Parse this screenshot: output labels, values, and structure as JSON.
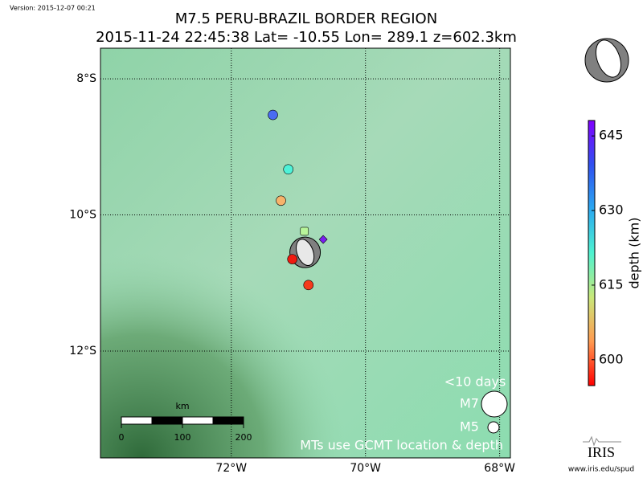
{
  "map": {
    "version": "Version: 2015-12-07 00:21",
    "title": "M7.5 PERU-BRAZIL BORDER REGION",
    "subtitle": "2015-11-24 22:45:38 Lat= -10.55 Lon= 289.1 z=602.3km",
    "xlim": [
      -73.95,
      -67.84
    ],
    "ylim": [
      -13.57,
      -7.55
    ],
    "xticks": [
      {
        "value": -72,
        "label": "72°W"
      },
      {
        "value": -70,
        "label": "70°W"
      },
      {
        "value": -68,
        "label": "68°W"
      }
    ],
    "yticks": [
      {
        "value": -8,
        "label": "8°S"
      },
      {
        "value": -10,
        "label": "10°S"
      },
      {
        "value": -12,
        "label": "12°S"
      }
    ],
    "grid": true,
    "mainshock": {
      "lon": -70.9,
      "lat": -10.55
    },
    "events": [
      {
        "lon": -71.38,
        "lat": -8.53,
        "depth": 640,
        "color": "#4a6cf2",
        "shape": "circle"
      },
      {
        "lon": -71.15,
        "lat": -9.33,
        "depth": 625,
        "color": "#4ef2d8",
        "shape": "circle"
      },
      {
        "lon": -71.26,
        "lat": -9.79,
        "depth": 607,
        "color": "#f7b36b",
        "shape": "circle"
      },
      {
        "lon": -70.91,
        "lat": -10.24,
        "depth": 617,
        "color": "#b8f59a",
        "shape": "square"
      },
      {
        "lon": -70.63,
        "lat": -10.36,
        "depth": 648,
        "color": "#7a1ef0",
        "shape": "diamond"
      },
      {
        "lon": -71.09,
        "lat": -10.65,
        "depth": 598,
        "color": "#f01a10",
        "shape": "circle"
      },
      {
        "lon": -70.85,
        "lat": -11.03,
        "depth": 600,
        "color": "#f53a1c",
        "shape": "circle"
      }
    ],
    "colorbar": {
      "label": "depth (km)",
      "lim": [
        594.8,
        648.1
      ],
      "ticks": [
        600,
        615,
        630,
        645
      ],
      "colors": [
        "#ff0000",
        "#ff9a50",
        "#c8e87a",
        "#4ef2d0",
        "#2aa8f0",
        "#3050f0",
        "#8000ff"
      ]
    },
    "legend": {
      "title": "<10 days",
      "items": [
        "M7",
        "M5"
      ],
      "note": "MTs use GCMT location & depth"
    },
    "scale_bar": {
      "unit": "km",
      "ticks": [
        0,
        100,
        200
      ]
    },
    "logo": {
      "name": "IRIS",
      "url": "www.iris.edu/spud"
    }
  }
}
